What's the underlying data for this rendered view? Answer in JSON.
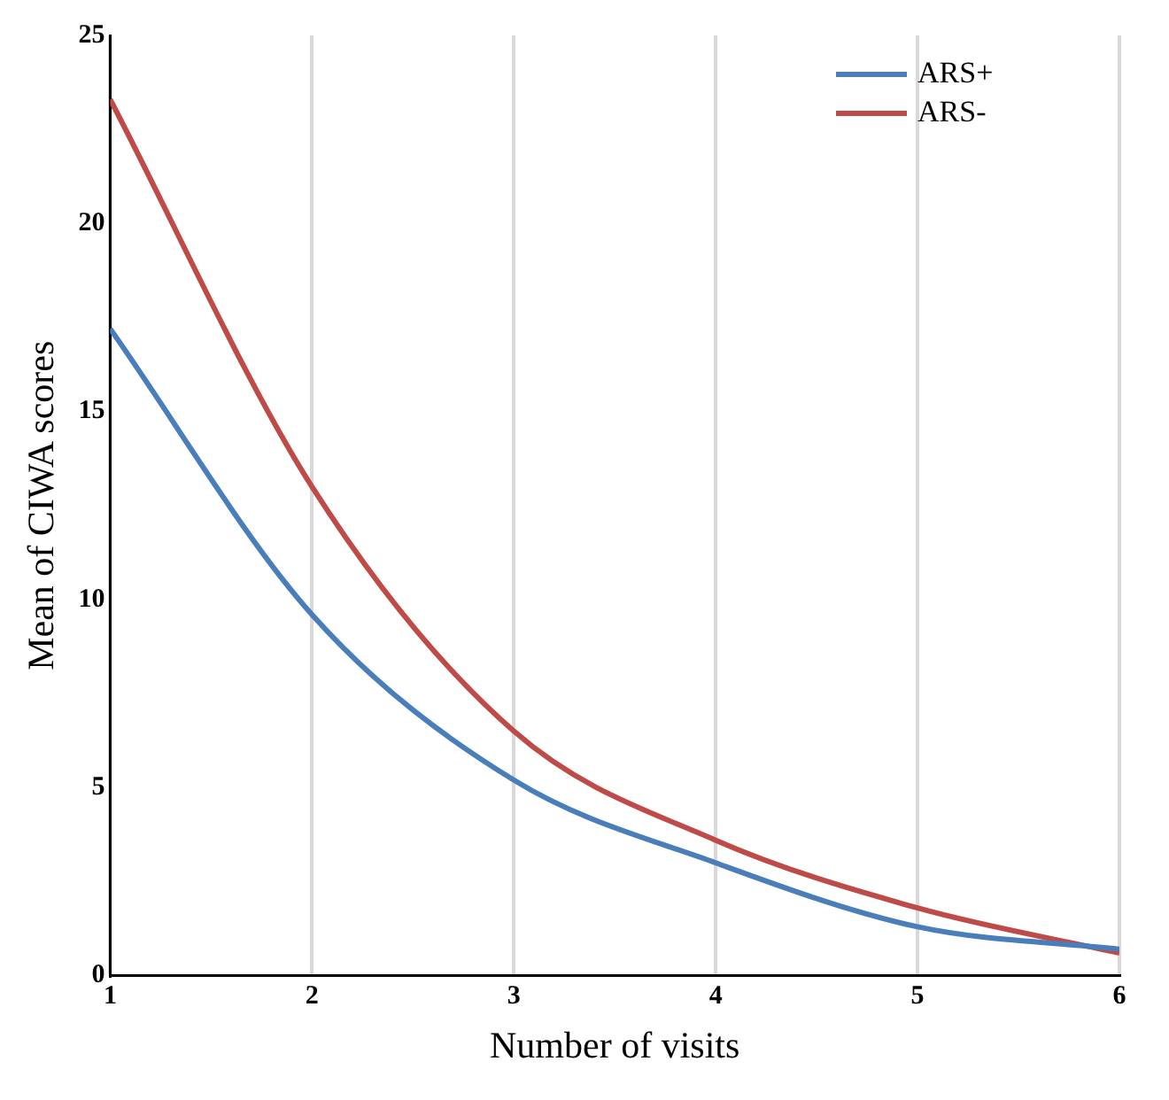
{
  "chart_data": {
    "type": "line",
    "xlabel": "Number of visits",
    "ylabel": "Mean of CIWA scores",
    "x": [
      1,
      2,
      3,
      4,
      5,
      6
    ],
    "series": [
      {
        "name": "ARS+",
        "color": "#4a7ebb",
        "values": [
          17.2,
          9.6,
          5.2,
          3.0,
          1.3,
          0.7
        ]
      },
      {
        "name": "ARS-",
        "color": "#be4b48",
        "values": [
          23.3,
          13.0,
          6.5,
          3.6,
          1.8,
          0.6
        ]
      }
    ],
    "xlim": [
      1,
      6
    ],
    "xticks": [
      1,
      2,
      3,
      4,
      5,
      6
    ],
    "ylim": [
      0,
      25
    ],
    "yticks": [
      0,
      5,
      10,
      15,
      20,
      25
    ],
    "grid": "x",
    "legend": "top right",
    "marker": "none",
    "line_style": "solid"
  }
}
